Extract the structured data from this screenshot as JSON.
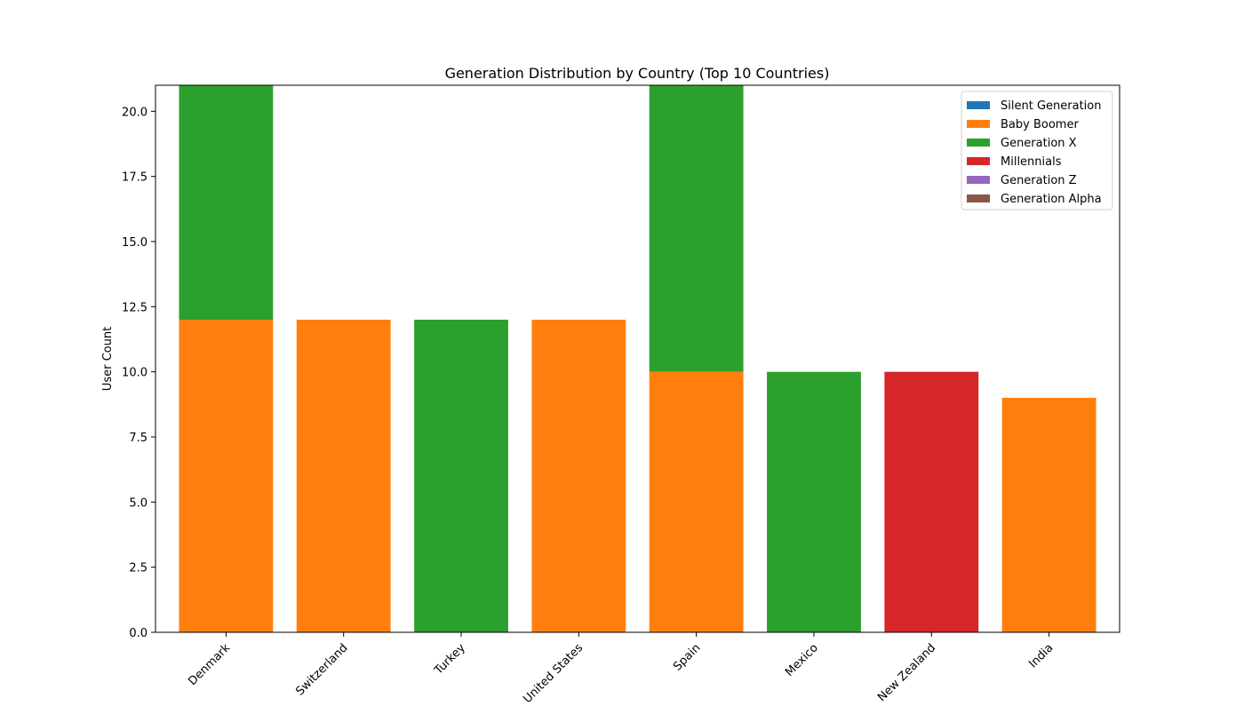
{
  "chart_data": {
    "type": "bar",
    "stacked": true,
    "title": "Generation Distribution by Country (Top 10 Countries)",
    "xlabel": "",
    "ylabel": "User Count",
    "categories": [
      "Denmark",
      "Switzerland",
      "Turkey",
      "United States",
      "Spain",
      "Mexico",
      "New Zealand",
      "India"
    ],
    "series": [
      {
        "name": "Silent Generation",
        "color": "#1f77b4",
        "values": [
          0,
          0,
          0,
          0,
          0,
          0,
          0,
          0
        ]
      },
      {
        "name": "Baby Boomer",
        "color": "#ff7f0e",
        "values": [
          12,
          12,
          0,
          12,
          10,
          0,
          0,
          9
        ]
      },
      {
        "name": "Generation X",
        "color": "#2ca02c",
        "values": [
          9,
          0,
          12,
          0,
          11,
          10,
          0,
          0
        ]
      },
      {
        "name": "Millennials",
        "color": "#d62728",
        "values": [
          0,
          0,
          0,
          0,
          0,
          0,
          10,
          0
        ]
      },
      {
        "name": "Generation Z",
        "color": "#9467bd",
        "values": [
          0,
          0,
          0,
          0,
          0,
          0,
          0,
          0
        ]
      },
      {
        "name": "Generation Alpha",
        "color": "#8c564b",
        "values": [
          0,
          0,
          0,
          0,
          0,
          0,
          0,
          0
        ]
      }
    ],
    "ylim": [
      0,
      21
    ],
    "yticks": [
      "0.0",
      "2.5",
      "5.0",
      "7.5",
      "10.0",
      "12.5",
      "15.0",
      "17.5",
      "20.0"
    ],
    "grid": false,
    "legend_position": "top-right"
  }
}
